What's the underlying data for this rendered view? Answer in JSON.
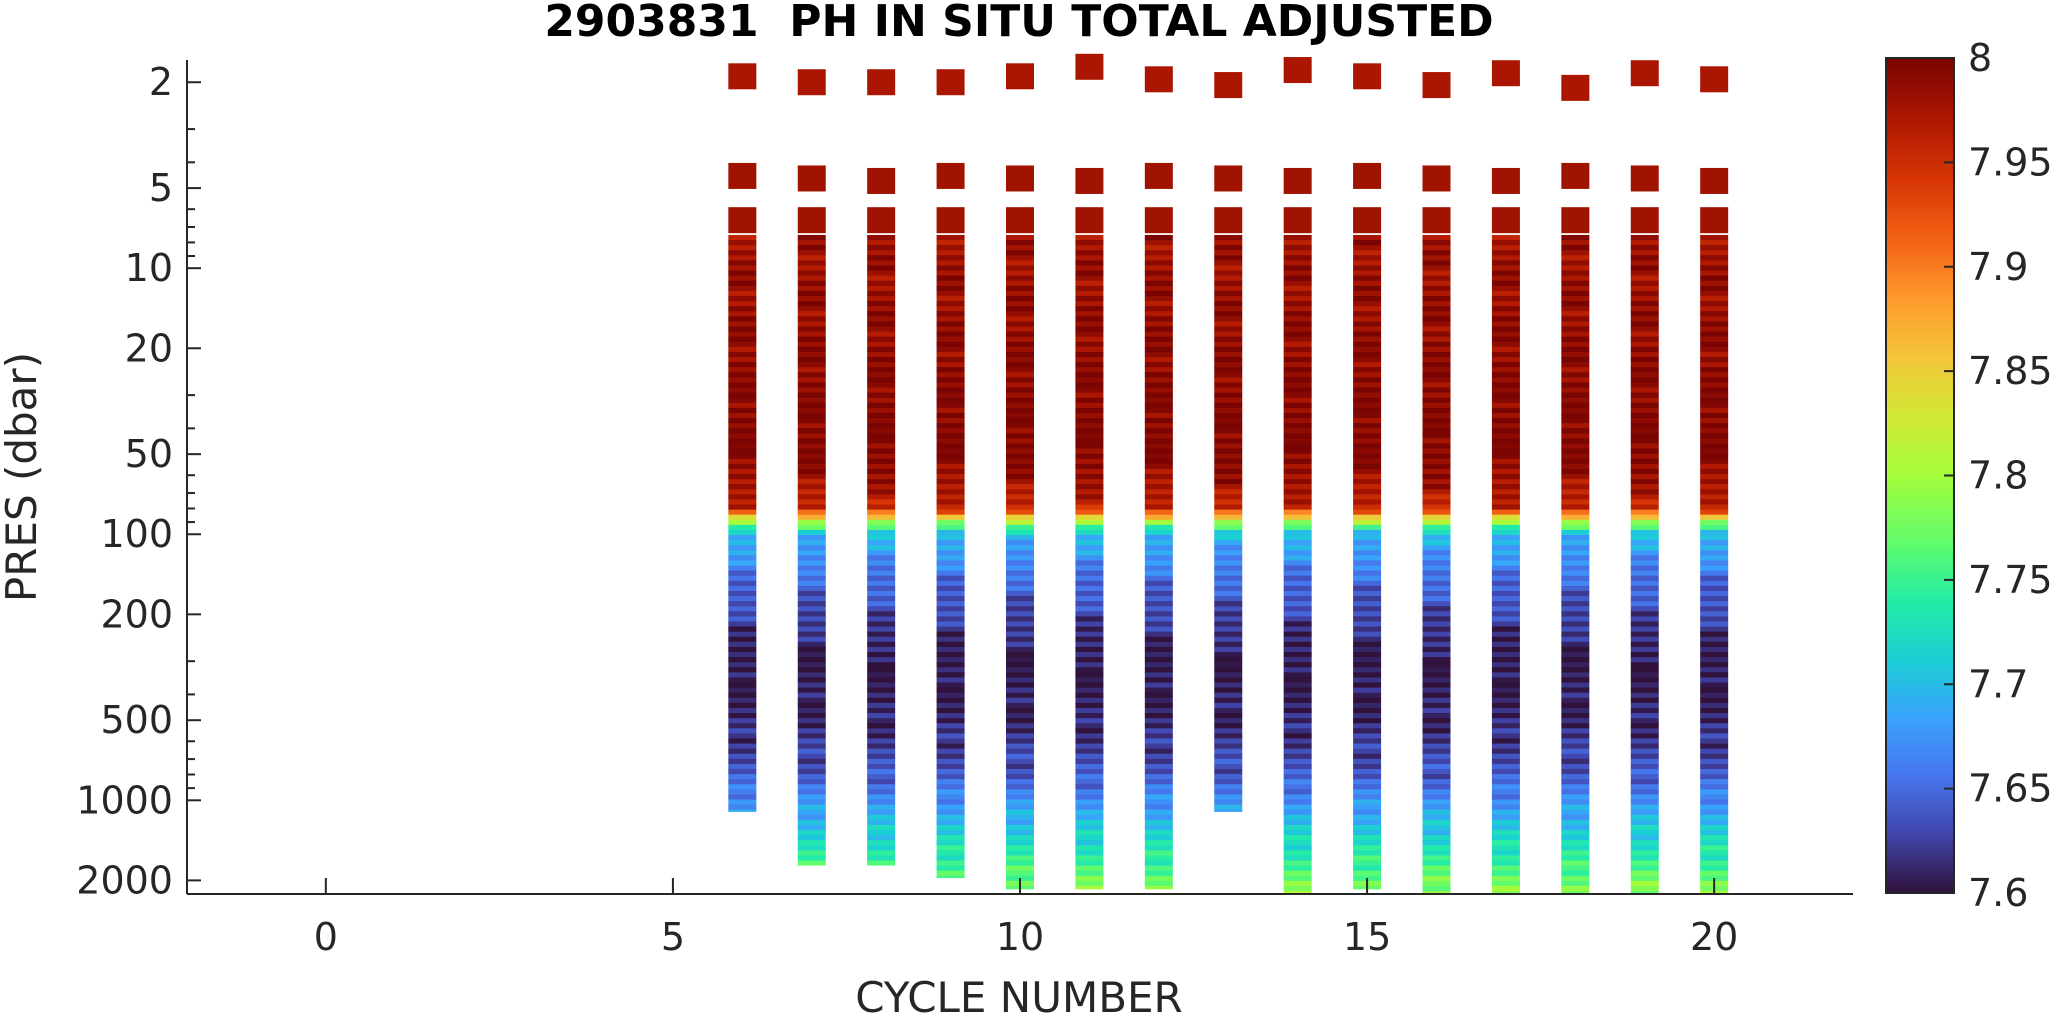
{
  "chart_data": {
    "type": "heatmap",
    "title": "2903831  PH IN SITU TOTAL ADJUSTED",
    "xlabel": "CYCLE NUMBER",
    "ylabel": "PRES (dbar)",
    "x_range": [
      -2,
      22
    ],
    "y_range": [
      1.65,
      2250
    ],
    "y_scale": "log",
    "y_reversed": true,
    "x_ticks": [
      "0",
      "5",
      "10",
      "15",
      "20"
    ],
    "y_ticks": [
      "2",
      "5",
      "10",
      "20",
      "50",
      "100",
      "200",
      "500",
      "1000",
      "2000"
    ],
    "colorbar": {
      "range": [
        7.6,
        8.0
      ],
      "colormap": "turbo",
      "ticks": [
        "7.6",
        "7.65",
        "7.7",
        "7.75",
        "7.8",
        "7.85",
        "7.9",
        "7.95",
        "8"
      ]
    },
    "profile_value_model": {
      "levels_dbar": [
        2,
        5,
        7,
        20,
        50,
        80,
        90,
        100,
        150,
        300,
        500,
        800,
        1200,
        1700,
        2200
      ],
      "values": [
        7.98,
        7.98,
        7.98,
        7.99,
        8.0,
        7.96,
        7.8,
        7.7,
        7.65,
        7.6,
        7.61,
        7.64,
        7.7,
        7.75,
        7.79
      ]
    },
    "profiles": [
      {
        "cycle": 6,
        "top_dbar": 1.9,
        "max_pres": 1100
      },
      {
        "cycle": 7,
        "top_dbar": 2.0,
        "max_pres": 1750
      },
      {
        "cycle": 8,
        "top_dbar": 2.0,
        "max_pres": 1750
      },
      {
        "cycle": 9,
        "top_dbar": 2.0,
        "max_pres": 1950
      },
      {
        "cycle": 10,
        "top_dbar": 1.9,
        "max_pres": 2150
      },
      {
        "cycle": 11,
        "top_dbar": 1.75,
        "max_pres": 2150
      },
      {
        "cycle": 12,
        "top_dbar": 1.95,
        "max_pres": 2150
      },
      {
        "cycle": 13,
        "top_dbar": 2.05,
        "max_pres": 1100
      },
      {
        "cycle": 14,
        "top_dbar": 1.8,
        "max_pres": 2250
      },
      {
        "cycle": 15,
        "top_dbar": 1.9,
        "max_pres": 2150
      },
      {
        "cycle": 16,
        "top_dbar": 2.05,
        "max_pres": 2250
      },
      {
        "cycle": 17,
        "top_dbar": 1.85,
        "max_pres": 2250
      },
      {
        "cycle": 18,
        "top_dbar": 2.1,
        "max_pres": 2250
      },
      {
        "cycle": 19,
        "top_dbar": 1.85,
        "max_pres": 2250
      },
      {
        "cycle": 20,
        "top_dbar": 1.95,
        "max_pres": 2250
      }
    ]
  }
}
